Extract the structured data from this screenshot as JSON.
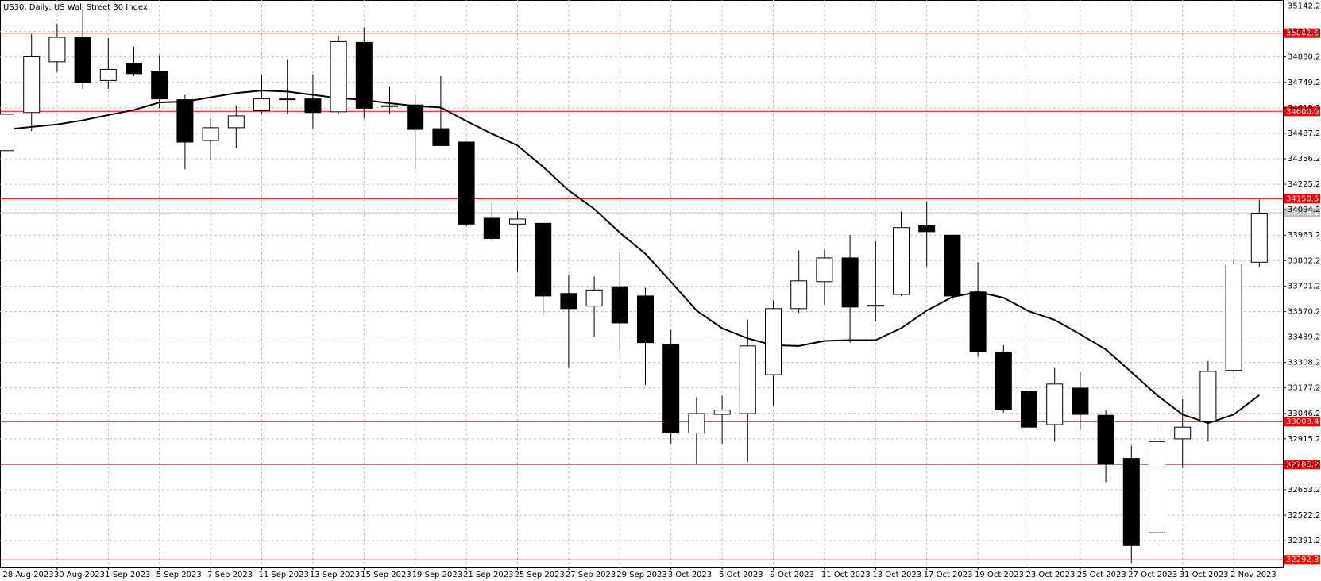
{
  "chart_data": {
    "type": "candlestick",
    "title": "US30, Daily:  US Wall Street 30 Index",
    "categories": [
      "28 Aug 2023",
      null,
      "30 Aug 2023",
      null,
      "1 Sep 2023",
      null,
      "5 Sep 2023",
      null,
      "7 Sep 2023",
      null,
      "11 Sep 2023",
      null,
      "13 Sep 2023",
      null,
      "15 Sep 2023",
      null,
      "19 Sep 2023",
      null,
      "21 Sep 2023",
      null,
      "25 Sep 2023",
      null,
      "27 Sep 2023",
      null,
      "29 Sep 2023",
      null,
      "3 Oct 2023",
      null,
      "5 Oct 2023",
      null,
      "9 Oct 2023",
      null,
      "11 Oct 2023",
      null,
      "13 Oct 2023",
      null,
      "17 Oct 2023",
      null,
      "19 Oct 2023",
      null,
      "23 Oct 2023",
      null,
      "25 Oct 2023",
      null,
      "27 Oct 2023",
      null,
      "31 Oct 2023",
      null,
      "2 Nov 2023",
      null
    ],
    "open": [
      34398,
      34594,
      34855,
      34981,
      34759,
      34846,
      34807,
      34660,
      34450,
      34516,
      34603,
      34660,
      34664,
      34598,
      34955,
      34629,
      34633,
      34511,
      34442,
      34050,
      34020,
      34024,
      33663,
      33598,
      33698,
      33650,
      33402,
      32945,
      33041,
      33045,
      33245,
      33585,
      33724,
      33846,
      33602,
      33658,
      34011,
      33963,
      33671,
      33362,
      33158,
      32988,
      33176,
      33036,
      32814,
      32432,
      32915,
      33002,
      33267,
      33824
    ],
    "high": [
      34620,
      34998,
      35051,
      35120,
      34977,
      34933,
      34890,
      34685,
      34563,
      34629,
      34790,
      34868,
      34790,
      34990,
      35033,
      34729,
      34685,
      34781,
      34442,
      34128,
      34085,
      34024,
      33758,
      33750,
      33876,
      33693,
      33476,
      33128,
      33137,
      33528,
      33628,
      33885,
      33889,
      33963,
      33933,
      34085,
      34137,
      33963,
      33824,
      33397,
      33258,
      33280,
      33258,
      33062,
      32880,
      32975,
      33119,
      33315,
      33841,
      34146
    ],
    "low": [
      34398,
      34498,
      34803,
      34716,
      34716,
      34781,
      34616,
      34302,
      34346,
      34411,
      34585,
      34585,
      34511,
      34585,
      34563,
      34585,
      34302,
      34424,
      34007,
      33933,
      33772,
      33554,
      33280,
      33441,
      33367,
      33193,
      32888,
      32788,
      32888,
      32797,
      33084,
      33563,
      33606,
      33410,
      33520,
      33650,
      33802,
      33630,
      33337,
      33050,
      32867,
      32901,
      32962,
      32693,
      32278,
      32388,
      32766,
      32901,
      33260,
      33800
    ],
    "close": [
      34585,
      34881,
      34981,
      34750,
      34816,
      34794,
      34664,
      34442,
      34516,
      34577,
      34664,
      34664,
      34594,
      34959,
      34616,
      34625,
      34507,
      34424,
      34020,
      33946,
      34046,
      33650,
      33585,
      33681,
      33511,
      33410,
      32945,
      33045,
      33063,
      33393,
      33585,
      33728,
      33846,
      33593,
      33600,
      34002,
      33981,
      33650,
      33362,
      33067,
      32975,
      33197,
      33041,
      32784,
      32366,
      32901,
      32975,
      33262,
      33815,
      34076
    ],
    "up_color": "#ffffff",
    "down_color": "#000000",
    "ma": [
      34507,
      34520,
      34533,
      34554,
      34581,
      34607,
      34646,
      34650,
      34672,
      34694,
      34707,
      34702,
      34685,
      34668,
      34659,
      34642,
      34628,
      34620,
      34550,
      34485,
      34424,
      34315,
      34193,
      34098,
      33976,
      33867,
      33723,
      33575,
      33484,
      33432,
      33397,
      33393,
      33419,
      33423,
      33423,
      33484,
      33575,
      33645,
      33671,
      33641,
      33571,
      33527,
      33453,
      33375,
      33258,
      33140,
      33040,
      32996,
      33040,
      33140
    ],
    "ma_color": "#000000",
    "ylim": [
      32257,
      35173
    ],
    "yticks": [
      35142.2,
      35011.2,
      34880.2,
      34749.2,
      34618.2,
      34487.2,
      34356.2,
      34225.2,
      34094.2,
      33963.2,
      33832.2,
      33701.2,
      33570.2,
      33439.2,
      33308.2,
      33177.2,
      33046.2,
      32915.2,
      32784.2,
      32653.2,
      32522.2,
      32391.2
    ],
    "grid": true,
    "levels": [
      35002.6,
      {
        "value": 34600,
        "label": "34600.0"
      },
      34150.5,
      33003.4,
      32783.2,
      32292.8
    ],
    "level_color": "#ff0000",
    "current_price": 34078.2
  }
}
